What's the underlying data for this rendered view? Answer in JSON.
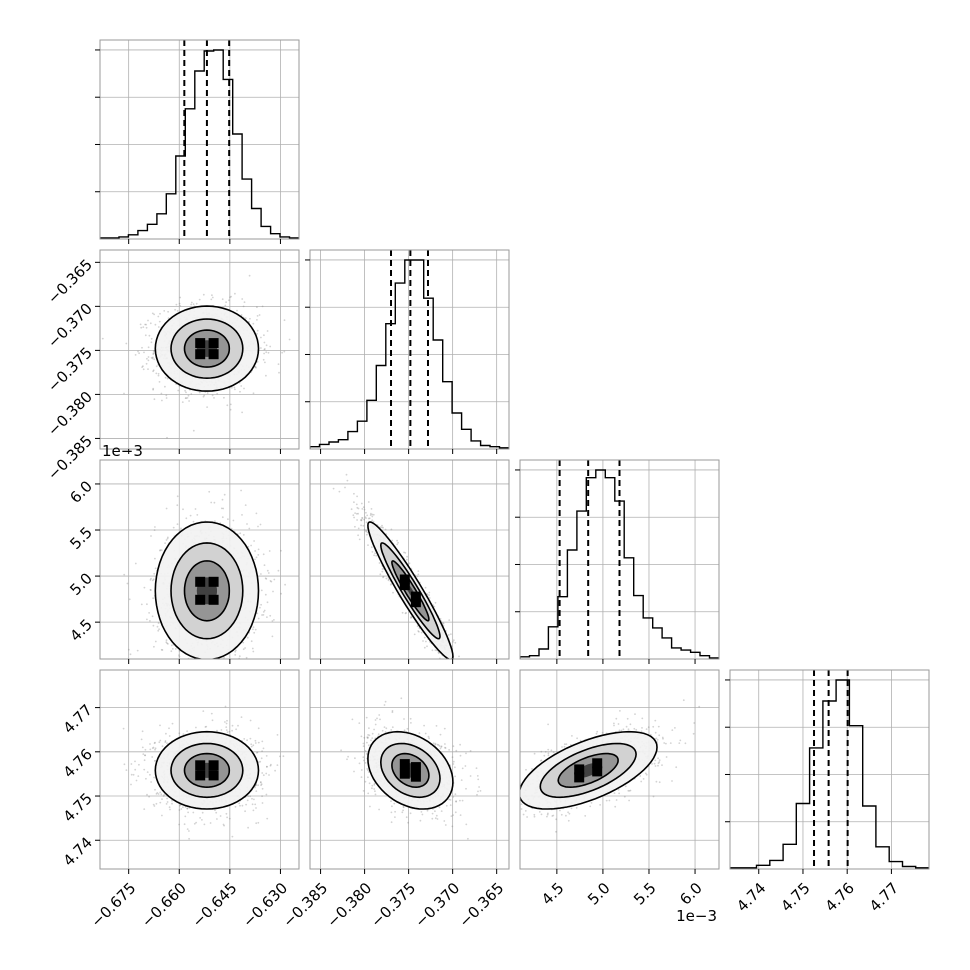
{
  "chart_data": {
    "type": "corner",
    "parameters": [
      {
        "ticks": [
          "−0.675",
          "−0.660",
          "−0.645",
          "−0.630"
        ],
        "tick_values": [
          -0.675,
          -0.66,
          -0.645,
          -0.63
        ],
        "range": [
          -0.6835,
          -0.6245
        ],
        "multiplier": "",
        "quantiles": [
          -0.6585,
          -0.6518,
          -0.6452
        ],
        "hist_counts": [
          1,
          1,
          2,
          4,
          8,
          14,
          24,
          43,
          79,
          124,
          160,
          179,
          180,
          152,
          100,
          57,
          29,
          12,
          5,
          2,
          1
        ]
      },
      {
        "ticks": [
          "−0.385",
          "−0.380",
          "−0.375",
          "−0.370",
          "−0.365"
        ],
        "tick_values": [
          -0.385,
          -0.38,
          -0.375,
          -0.37,
          -0.365
        ],
        "range": [
          -0.3862,
          -0.3636
        ],
        "multiplier": "",
        "quantiles": [
          -0.377,
          -0.3748,
          -0.3728
        ],
        "hist_counts": [
          2,
          4,
          6,
          8,
          15,
          24,
          42,
          72,
          108,
          143,
          163,
          163,
          130,
          94,
          58,
          31,
          17,
          7,
          3,
          2,
          1
        ]
      },
      {
        "ticks": [
          "4.5",
          "5.0",
          "5.5",
          "6.0"
        ],
        "tick_values": [
          4.5,
          5.0,
          5.5,
          6.0
        ],
        "range": [
          4.1,
          6.26
        ],
        "multiplier": "1e−3",
        "quantiles": [
          4.53,
          4.84,
          5.18
        ],
        "hist_counts": [
          2,
          3,
          9,
          29,
          56,
          98,
          133,
          163,
          170,
          163,
          142,
          91,
          57,
          37,
          28,
          19,
          10,
          8,
          6,
          3,
          1
        ]
      },
      {
        "ticks": [
          "4.74",
          "4.75",
          "4.76",
          "4.77"
        ],
        "tick_values": [
          4.74,
          4.75,
          4.76,
          4.77
        ],
        "range": [
          4.7335,
          4.7785
        ],
        "multiplier": "",
        "quantiles": [
          4.7525,
          4.7558,
          4.7601
        ],
        "hist_counts": [
          1,
          1,
          3,
          7,
          20,
          53,
          98,
          136,
          153,
          116,
          51,
          18,
          6,
          2,
          1
        ]
      }
    ],
    "correlations": {
      "0-1": 0.0,
      "0-2": 0.0,
      "1-2": -0.95,
      "0-3": 0.0,
      "1-3": -0.3,
      "2-3": 0.6
    },
    "grid": true,
    "xlabel": "",
    "ylabel": ""
  },
  "colors": {
    "axis": "#9a9a9a",
    "grid": "#b0b0b0",
    "line": "#000000",
    "points": "#808080"
  }
}
